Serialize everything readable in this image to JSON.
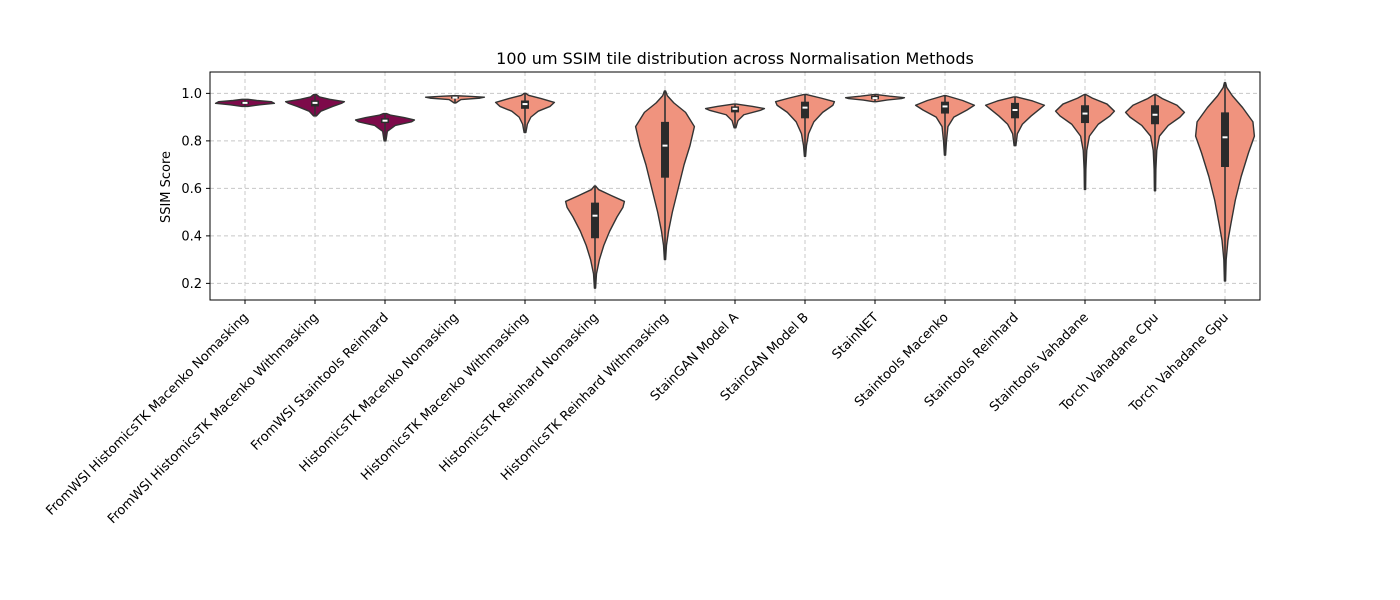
{
  "chart_data": {
    "type": "violin",
    "title": "100 um SSIM tile distribution across Normalisation Methods",
    "xlabel": "",
    "ylabel": "SSIM Score",
    "ylim": [
      0.13,
      1.09
    ],
    "yticks": [
      "0.2",
      "0.4",
      "0.6",
      "0.8",
      "1.0"
    ],
    "grid": true,
    "colors": {
      "highlight": "#7d0a4a",
      "default": "#f0937e",
      "outline": "#333333"
    },
    "categories": [
      "FromWSI HistomicsTK Macenko Nomasking",
      "FromWSI HistomicsTK Macenko Withmasking",
      "FromWSI Staintools Reinhard",
      "HistomicsTK Macenko Nomasking",
      "HistomicsTK Macenko Withmasking",
      "HistomicsTK Reinhard Nomasking",
      "HistomicsTK Reinhard Withmasking",
      "StainGAN Model A",
      "StainGAN Model B",
      "StainNET",
      "Staintools Macenko",
      "Staintools Reinhard",
      "Staintools Vahadane",
      "Torch Vahadane Cpu",
      "Torch Vahadane Gpu"
    ],
    "series": [
      {
        "highlight": true,
        "min": 0.945,
        "q1": 0.955,
        "median": 0.96,
        "q3": 0.965,
        "max": 0.975,
        "profile": [
          [
            0.945,
            0.1
          ],
          [
            0.952,
            0.5
          ],
          [
            0.958,
            1
          ],
          [
            0.965,
            0.9
          ],
          [
            0.97,
            0.4
          ],
          [
            0.975,
            0.1
          ]
        ]
      },
      {
        "highlight": true,
        "min": 0.905,
        "q1": 0.945,
        "median": 0.96,
        "q3": 0.97,
        "max": 0.995,
        "profile": [
          [
            0.905,
            0.05
          ],
          [
            0.925,
            0.2
          ],
          [
            0.945,
            0.6
          ],
          [
            0.958,
            0.9
          ],
          [
            0.965,
            1
          ],
          [
            0.975,
            0.5
          ],
          [
            0.985,
            0.15
          ],
          [
            0.995,
            0.05
          ]
        ]
      },
      {
        "highlight": true,
        "min": 0.8,
        "q1": 0.875,
        "median": 0.885,
        "q3": 0.895,
        "max": 0.915,
        "profile": [
          [
            0.8,
            0.03
          ],
          [
            0.84,
            0.08
          ],
          [
            0.865,
            0.35
          ],
          [
            0.88,
            0.9
          ],
          [
            0.888,
            1
          ],
          [
            0.898,
            0.65
          ],
          [
            0.908,
            0.2
          ],
          [
            0.915,
            0.05
          ]
        ]
      },
      {
        "highlight": false,
        "min": 0.96,
        "q1": 0.978,
        "median": 0.982,
        "q3": 0.986,
        "max": 0.99,
        "profile": [
          [
            0.96,
            0.03
          ],
          [
            0.974,
            0.2
          ],
          [
            0.98,
            0.85
          ],
          [
            0.984,
            1
          ],
          [
            0.988,
            0.4
          ],
          [
            0.99,
            0.05
          ]
        ]
      },
      {
        "highlight": false,
        "min": 0.835,
        "q1": 0.935,
        "median": 0.955,
        "q3": 0.97,
        "max": 1.0,
        "profile": [
          [
            0.835,
            0.03
          ],
          [
            0.87,
            0.08
          ],
          [
            0.9,
            0.2
          ],
          [
            0.925,
            0.45
          ],
          [
            0.945,
            0.85
          ],
          [
            0.962,
            1
          ],
          [
            0.978,
            0.55
          ],
          [
            0.992,
            0.12
          ],
          [
            1.0,
            0.03
          ]
        ]
      },
      {
        "highlight": false,
        "min": 0.18,
        "q1": 0.39,
        "median": 0.485,
        "q3": 0.54,
        "max": 0.61,
        "profile": [
          [
            0.18,
            0.02
          ],
          [
            0.24,
            0.05
          ],
          [
            0.3,
            0.15
          ],
          [
            0.36,
            0.3
          ],
          [
            0.42,
            0.5
          ],
          [
            0.48,
            0.75
          ],
          [
            0.52,
            0.95
          ],
          [
            0.545,
            1
          ],
          [
            0.57,
            0.55
          ],
          [
            0.595,
            0.12
          ],
          [
            0.61,
            0.02
          ]
        ]
      },
      {
        "highlight": false,
        "min": 0.3,
        "q1": 0.645,
        "median": 0.78,
        "q3": 0.88,
        "max": 1.01,
        "profile": [
          [
            0.3,
            0.02
          ],
          [
            0.36,
            0.05
          ],
          [
            0.42,
            0.12
          ],
          [
            0.5,
            0.25
          ],
          [
            0.6,
            0.45
          ],
          [
            0.7,
            0.65
          ],
          [
            0.78,
            0.85
          ],
          [
            0.86,
            1
          ],
          [
            0.92,
            0.7
          ],
          [
            0.96,
            0.3
          ],
          [
            0.99,
            0.08
          ],
          [
            1.01,
            0.02
          ]
        ]
      },
      {
        "highlight": false,
        "min": 0.855,
        "q1": 0.92,
        "median": 0.935,
        "q3": 0.945,
        "max": 0.955,
        "profile": [
          [
            0.855,
            0.03
          ],
          [
            0.885,
            0.1
          ],
          [
            0.91,
            0.3
          ],
          [
            0.928,
            0.85
          ],
          [
            0.936,
            1
          ],
          [
            0.945,
            0.6
          ],
          [
            0.955,
            0.05
          ]
        ]
      },
      {
        "highlight": false,
        "min": 0.735,
        "q1": 0.895,
        "median": 0.94,
        "q3": 0.965,
        "max": 0.995,
        "profile": [
          [
            0.735,
            0.02
          ],
          [
            0.78,
            0.05
          ],
          [
            0.83,
            0.12
          ],
          [
            0.88,
            0.3
          ],
          [
            0.92,
            0.6
          ],
          [
            0.95,
            0.95
          ],
          [
            0.965,
            1
          ],
          [
            0.98,
            0.55
          ],
          [
            0.995,
            0.05
          ]
        ]
      },
      {
        "highlight": false,
        "min": 0.965,
        "q1": 0.975,
        "median": 0.98,
        "q3": 0.99,
        "max": 0.995,
        "profile": [
          [
            0.965,
            0.05
          ],
          [
            0.972,
            0.4
          ],
          [
            0.978,
            0.9
          ],
          [
            0.982,
            1
          ],
          [
            0.988,
            0.5
          ],
          [
            0.995,
            0.05
          ]
        ]
      },
      {
        "highlight": false,
        "min": 0.74,
        "q1": 0.915,
        "median": 0.945,
        "q3": 0.965,
        "max": 0.99,
        "profile": [
          [
            0.74,
            0.02
          ],
          [
            0.8,
            0.05
          ],
          [
            0.86,
            0.1
          ],
          [
            0.9,
            0.3
          ],
          [
            0.93,
            0.75
          ],
          [
            0.95,
            1
          ],
          [
            0.97,
            0.6
          ],
          [
            0.99,
            0.05
          ]
        ]
      },
      {
        "highlight": false,
        "min": 0.78,
        "q1": 0.895,
        "median": 0.93,
        "q3": 0.96,
        "max": 0.985,
        "profile": [
          [
            0.78,
            0.03
          ],
          [
            0.83,
            0.08
          ],
          [
            0.87,
            0.25
          ],
          [
            0.905,
            0.55
          ],
          [
            0.935,
            0.85
          ],
          [
            0.95,
            1
          ],
          [
            0.968,
            0.6
          ],
          [
            0.985,
            0.05
          ]
        ]
      },
      {
        "highlight": false,
        "min": 0.595,
        "q1": 0.875,
        "median": 0.915,
        "q3": 0.95,
        "max": 0.995,
        "profile": [
          [
            0.595,
            0.02
          ],
          [
            0.68,
            0.03
          ],
          [
            0.76,
            0.06
          ],
          [
            0.82,
            0.15
          ],
          [
            0.87,
            0.45
          ],
          [
            0.905,
            0.85
          ],
          [
            0.925,
            1
          ],
          [
            0.955,
            0.75
          ],
          [
            0.98,
            0.25
          ],
          [
            0.995,
            0.03
          ]
        ]
      },
      {
        "highlight": false,
        "min": 0.59,
        "q1": 0.87,
        "median": 0.91,
        "q3": 0.95,
        "max": 0.995,
        "profile": [
          [
            0.59,
            0.02
          ],
          [
            0.68,
            0.03
          ],
          [
            0.76,
            0.06
          ],
          [
            0.82,
            0.15
          ],
          [
            0.865,
            0.45
          ],
          [
            0.9,
            0.85
          ],
          [
            0.92,
            1
          ],
          [
            0.95,
            0.75
          ],
          [
            0.978,
            0.25
          ],
          [
            0.995,
            0.03
          ]
        ]
      },
      {
        "highlight": false,
        "min": 0.21,
        "q1": 0.69,
        "median": 0.815,
        "q3": 0.92,
        "max": 1.045,
        "profile": [
          [
            0.21,
            0.02
          ],
          [
            0.3,
            0.04
          ],
          [
            0.38,
            0.1
          ],
          [
            0.45,
            0.2
          ],
          [
            0.55,
            0.35
          ],
          [
            0.65,
            0.55
          ],
          [
            0.75,
            0.8
          ],
          [
            0.82,
            1
          ],
          [
            0.88,
            0.95
          ],
          [
            0.94,
            0.6
          ],
          [
            0.99,
            0.25
          ],
          [
            1.025,
            0.06
          ],
          [
            1.045,
            0.02
          ]
        ]
      }
    ]
  }
}
